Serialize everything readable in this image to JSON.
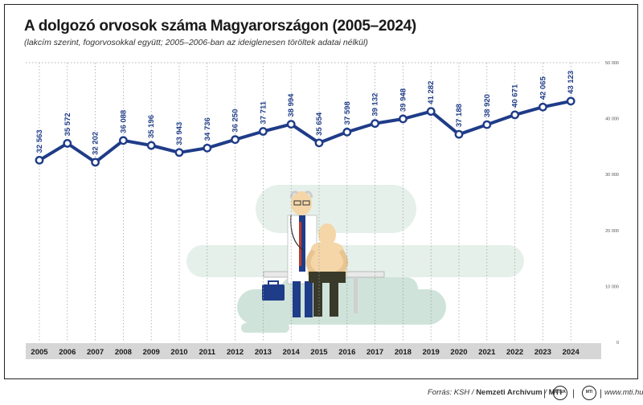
{
  "chart_data": {
    "type": "line",
    "title": "A dolgozó orvosok száma Magyarországon (2005–2024)",
    "subtitle": "(lakcím szerint, fogorvosokkal együtt; 2005–2006-ban az ideiglenesen töröltek adatai nélkül)",
    "categories": [
      "2005",
      "2006",
      "2007",
      "2008",
      "2009",
      "2010",
      "2011",
      "2012",
      "2013",
      "2014",
      "2015",
      "2016",
      "2017",
      "2018",
      "2019",
      "2020",
      "2021",
      "2022",
      "2023",
      "2024"
    ],
    "values": [
      32563,
      35572,
      32202,
      36088,
      35196,
      33943,
      34736,
      36250,
      37711,
      38994,
      35654,
      37598,
      39132,
      39948,
      41282,
      37188,
      38920,
      40671,
      42065,
      43123
    ],
    "value_labels": [
      "32 563",
      "35 572",
      "32 202",
      "36 088",
      "35 196",
      "33 943",
      "34 736",
      "36 250",
      "37 711",
      "38 994",
      "35 654",
      "37 598",
      "39 132",
      "39 948",
      "41 282",
      "37 188",
      "38 920",
      "40 671",
      "42 065",
      "43 123"
    ],
    "y_ticks": [
      0,
      10000,
      20000,
      30000,
      40000,
      50000
    ],
    "y_tick_labels": [
      "0",
      "10 000",
      "20 000",
      "30 000",
      "40 000",
      "50 000"
    ],
    "ylim": [
      0,
      50000
    ],
    "grid": "vertical dotted",
    "line_color": "#1f3c88",
    "axis_band_color": "#d6d6d6"
  },
  "footer": {
    "source_prefix": "Forrás: KSH / ",
    "source_archive": "Nemzeti Archívum",
    "source_sep": " / ",
    "source_mti": "MTI",
    "logo1": "MTVA",
    "logo2": "MTI",
    "site": "www.mti.hu"
  }
}
